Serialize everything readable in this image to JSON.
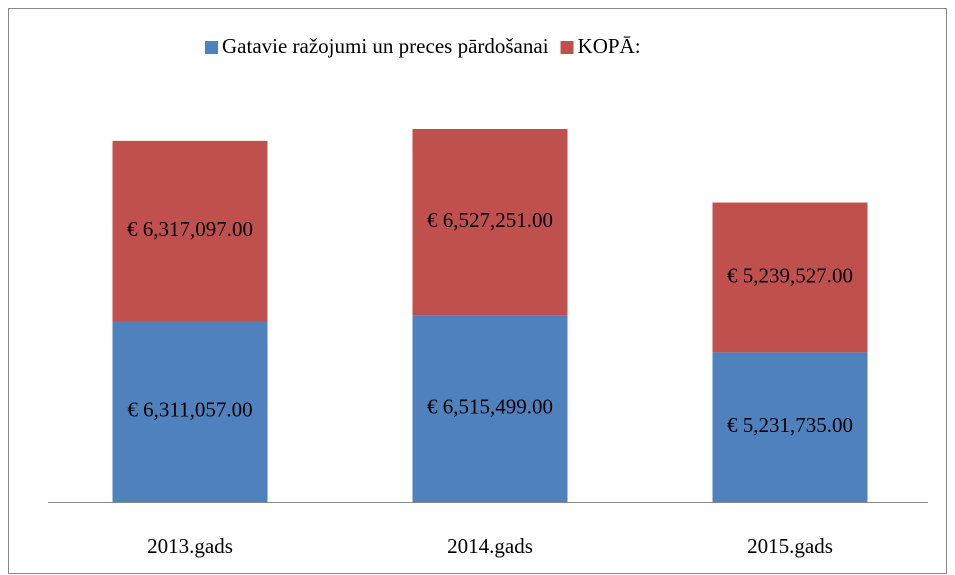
{
  "chart_data": {
    "type": "stacked_bar",
    "categories": [
      "2013.gads",
      "2014.gads",
      "2015.gads"
    ],
    "series": [
      {
        "name": "Gatavie ražojumi un preces pārdošanai",
        "color": "#4f81bd",
        "values": [
          6311057,
          6515499,
          5231735
        ],
        "value_labels": [
          "€ 6,311,057.00",
          "€ 6,515,499.00",
          "€ 5,231,735.00"
        ]
      },
      {
        "name": "KOPĀ:",
        "color": "#c0504d",
        "values": [
          6317097,
          6527251,
          5239527
        ],
        "value_labels": [
          "€ 6,317,097.00",
          "€ 6,527,251.00",
          "€ 5,239,527.00"
        ]
      }
    ],
    "legend": "top"
  }
}
